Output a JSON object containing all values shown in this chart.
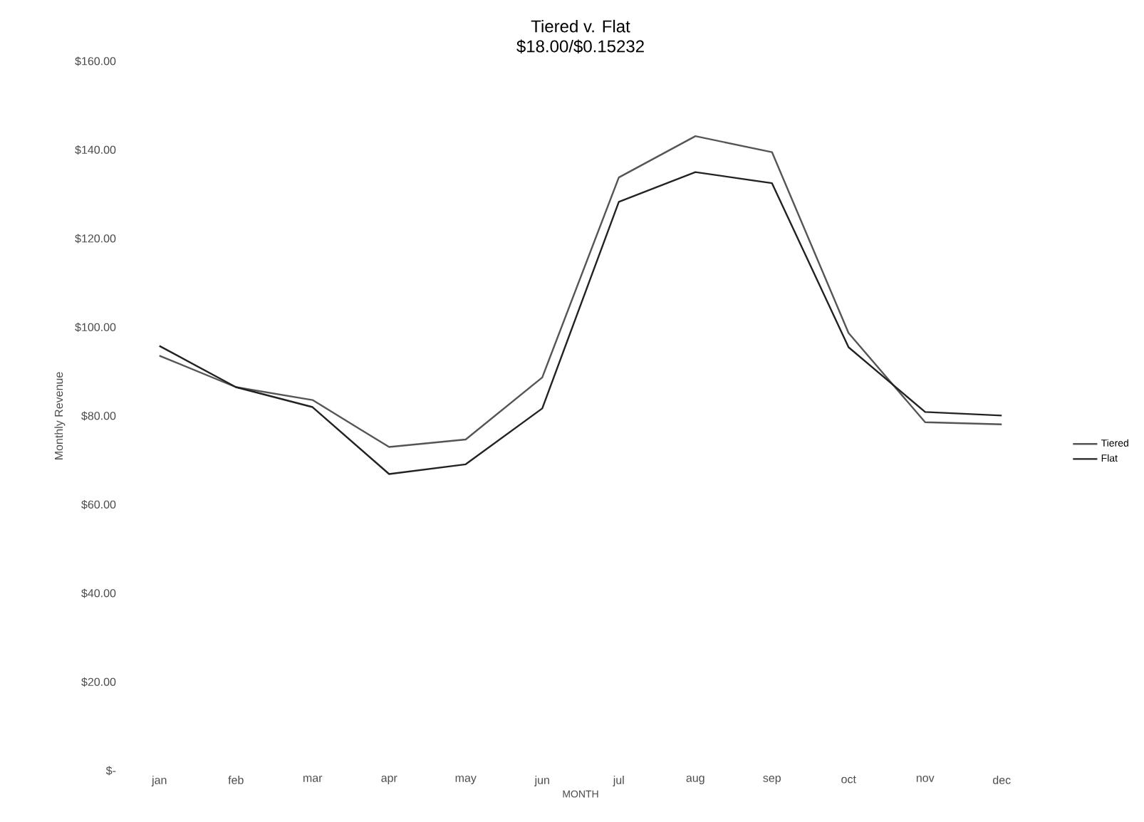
{
  "chart_data": {
    "type": "line",
    "title": "Tiered v. Flat",
    "subtitle": "$18.00/$0.15232",
    "xlabel": "MONTH",
    "ylabel": "Monthly Revenue",
    "categories": [
      "jan",
      "feb",
      "mar",
      "apr",
      "may",
      "jun",
      "jul",
      "aug",
      "sep",
      "oct",
      "nov",
      "dec"
    ],
    "series": [
      {
        "name": "Tiered",
        "color": "#555555",
        "values": [
          93.6,
          86.5,
          83.6,
          73,
          74.7,
          88.7,
          133.8,
          143.1,
          139.5,
          98.7,
          78.6,
          78.1
        ]
      },
      {
        "name": "Flat",
        "color": "#222222",
        "values": [
          95.8,
          86.5,
          82,
          66.9,
          69.1,
          81.7,
          128.3,
          135,
          132.5,
          95.5,
          80.9,
          80.1
        ]
      }
    ],
    "ylim": [
      0,
      160
    ],
    "yticks": [
      {
        "value": 0,
        "label": "$-"
      },
      {
        "value": 20,
        "label": "$20.00"
      },
      {
        "value": 40,
        "label": "$40.00"
      },
      {
        "value": 60,
        "label": "$60.00"
      },
      {
        "value": 80,
        "label": "$80.00"
      },
      {
        "value": 100,
        "label": "$100.00"
      },
      {
        "value": 120,
        "label": "$120.00"
      },
      {
        "value": 140,
        "label": "$140.00"
      },
      {
        "value": 160,
        "label": "$160.00"
      }
    ],
    "legend": "right",
    "grid": false,
    "marker": "none",
    "line_style": "solid"
  }
}
